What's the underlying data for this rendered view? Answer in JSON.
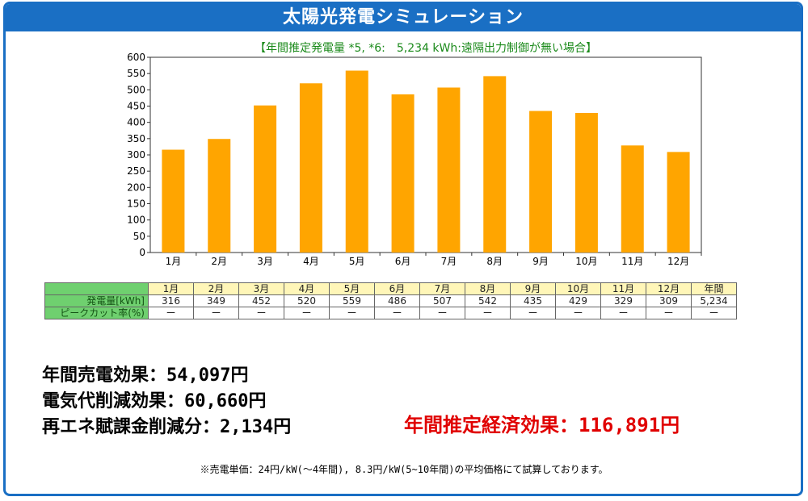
{
  "page": {
    "title": "太陽光発電シミュレーション",
    "footnote": "※売電単価：24円/kW(～4年間), 8.3円/kW(5~10年間)の平均価格にて試算しております。"
  },
  "chart_data": {
    "type": "bar",
    "title": "【年間推定発電量 *5, *6:　5,234 kWh:遠隔出力制御が無い場合】",
    "categories": [
      "1月",
      "2月",
      "3月",
      "4月",
      "5月",
      "6月",
      "7月",
      "8月",
      "9月",
      "10月",
      "11月",
      "12月"
    ],
    "values": [
      316,
      349,
      452,
      520,
      559,
      486,
      507,
      542,
      435,
      429,
      329,
      309
    ],
    "ylim": [
      0,
      600
    ],
    "yticks": [
      0,
      50,
      100,
      150,
      200,
      250,
      300,
      350,
      400,
      450,
      500,
      550,
      600
    ],
    "bar_color": "#ffa500",
    "title_color": "#1b8a1b",
    "grid": false
  },
  "table": {
    "headers": [
      "1月",
      "2月",
      "3月",
      "4月",
      "5月",
      "6月",
      "7月",
      "8月",
      "9月",
      "10月",
      "11月",
      "12月",
      "年間"
    ],
    "rows": [
      {
        "label": "発電量[kWh]",
        "values": [
          "316",
          "349",
          "452",
          "520",
          "559",
          "486",
          "507",
          "542",
          "435",
          "429",
          "329",
          "309",
          "5,234"
        ]
      },
      {
        "label": "ピークカット率(%)",
        "values": [
          "ー",
          "ー",
          "ー",
          "ー",
          "ー",
          "ー",
          "ー",
          "ー",
          "ー",
          "ー",
          "ー",
          "ー",
          "ー"
        ]
      }
    ]
  },
  "summary": {
    "sales_effect": "年間売電効果：54,097円",
    "electricity_saving": "電気代削減効果：60,660円",
    "renewable_levy_saving": "再エネ賦課金削減分：2,134円",
    "total_effect": "年間推定経済効果：116,891円"
  },
  "colors": {
    "accent": "#1a6fc4",
    "total": "#e00000",
    "table_header": "#6fd06f",
    "month_header": "#fff6b8"
  }
}
